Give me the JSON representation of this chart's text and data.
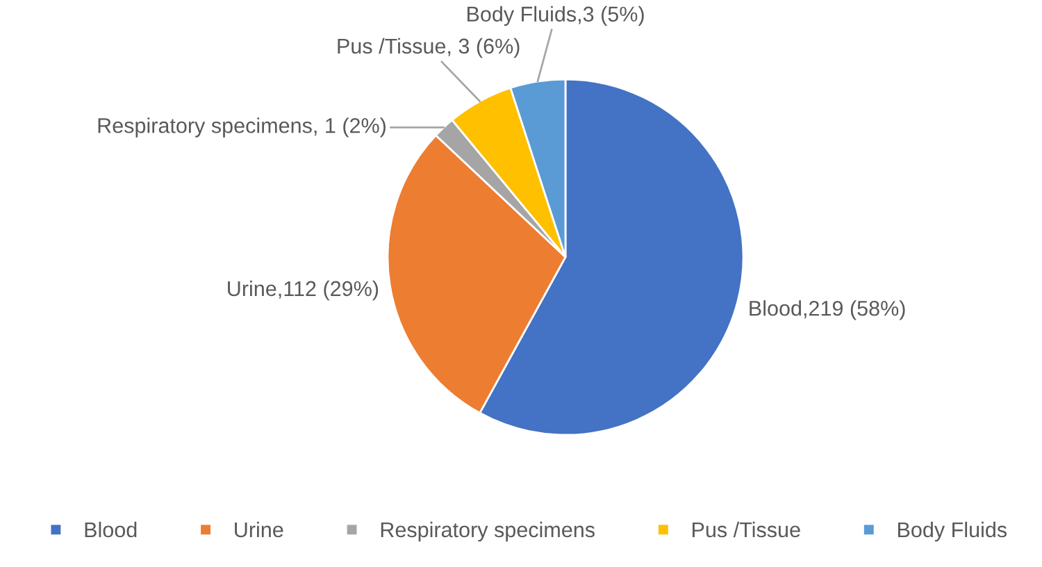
{
  "chart_data": {
    "type": "pie",
    "categories": [
      "Blood",
      "Urine",
      "Respiratory specimens",
      "Pus /Tissue",
      "Body Fluids"
    ],
    "values": [
      58,
      29,
      2,
      6,
      5
    ],
    "colors": [
      "#4472c4",
      "#ed7d31",
      "#a5a5a5",
      "#ffc000",
      "#5b9bd5"
    ],
    "value_labels": [
      "Blood,219 (58%)",
      "Urine,112 (29%)",
      "Respiratory specimens, 1 (2%)",
      "Pus /Tissue, 3 (6%)",
      "Body Fluids,3 (5%)"
    ],
    "legend": "bottom"
  }
}
